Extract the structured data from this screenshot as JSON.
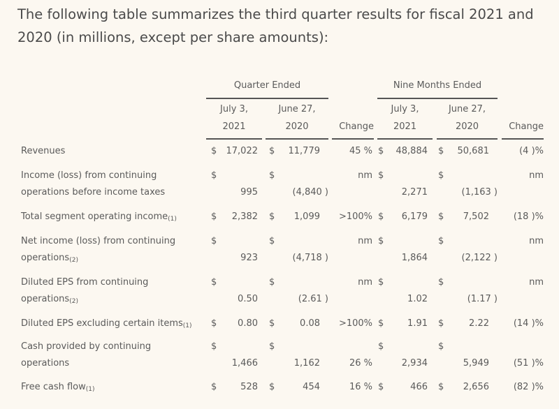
{
  "intro": "The following table summarizes the third quarter results for fiscal 2021 and 2020 (in millions, except per share amounts):",
  "table": {
    "group_headers": [
      "Quarter Ended",
      "Nine Months Ended"
    ],
    "columns": [
      {
        "line1": "July 3,",
        "line2": "2021"
      },
      {
        "line1": "June 27,",
        "line2": "2020"
      },
      {
        "line1": "",
        "line2": "Change"
      },
      {
        "line1": "July 3,",
        "line2": "2021"
      },
      {
        "line1": "June 27,",
        "line2": "2020"
      },
      {
        "line1": "",
        "line2": "Change"
      }
    ],
    "currency_symbol": "$",
    "rows": [
      {
        "label": [
          "Revenues"
        ],
        "note": "",
        "values": [
          "17,022",
          "11,779",
          "45 %",
          "48,884",
          "50,681",
          "(4 )%"
        ]
      },
      {
        "label": [
          "Income (loss) from continuing",
          "operations before income taxes"
        ],
        "note": "",
        "values": [
          "995",
          "(4,840 )",
          "nm",
          "2,271",
          "(1,163 )",
          "nm"
        ]
      },
      {
        "label": [
          "Total segment operating income"
        ],
        "note": "(1)",
        "values": [
          "2,382",
          "1,099",
          ">100%",
          "6,179",
          "7,502",
          "(18 )%"
        ]
      },
      {
        "label": [
          "Net income (loss) from continuing",
          "operations"
        ],
        "note": "(2)",
        "values": [
          "923",
          "(4,718 )",
          "nm",
          "1,864",
          "(2,122 )",
          "nm"
        ]
      },
      {
        "label": [
          "Diluted EPS from continuing",
          "operations"
        ],
        "note": "(2)",
        "values": [
          "0.50",
          "(2.61 )",
          "nm",
          "1.02",
          "(1.17 )",
          "nm"
        ]
      },
      {
        "label": [
          "Diluted EPS excluding certain items"
        ],
        "note": "(1)",
        "values": [
          "0.80",
          "0.08",
          ">100%",
          "1.91",
          "2.22",
          "(14 )%"
        ]
      },
      {
        "label": [
          "Cash provided by continuing",
          "operations"
        ],
        "note": "",
        "values": [
          "1,466",
          "1,162",
          "26 %",
          "2,934",
          "5,949",
          "(51 )%"
        ]
      },
      {
        "label": [
          "Free cash flow"
        ],
        "note": "(1)",
        "values": [
          "528",
          "454",
          "16 %",
          "466",
          "2,656",
          "(82 )%"
        ]
      }
    ]
  }
}
